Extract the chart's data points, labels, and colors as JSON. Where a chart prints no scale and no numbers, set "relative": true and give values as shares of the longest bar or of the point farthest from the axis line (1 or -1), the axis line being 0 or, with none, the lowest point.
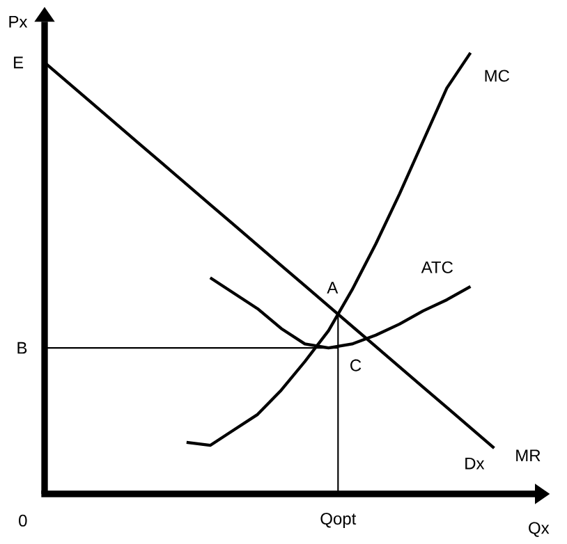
{
  "chart_data": {
    "type": "line",
    "relative": true,
    "xlabel": "Qx",
    "ylabel": "Px",
    "legend": false,
    "marker": "none",
    "line_style": "solid",
    "categories": [
      null,
      null,
      null,
      null,
      null,
      null,
      null,
      null,
      null,
      null,
      null,
      null,
      null,
      null,
      null,
      null,
      null,
      null,
      null,
      null
    ],
    "series": [
      {
        "name": "Dx",
        "color": "#000000",
        "values": [
          0.978,
          0.932,
          0.886,
          0.84,
          0.794,
          0.748,
          0.702,
          0.656,
          0.61,
          0.564,
          0.518,
          0.472,
          0.426,
          0.38,
          0.334,
          0.288,
          0.242,
          0.196,
          0.15,
          0.104
        ]
      },
      {
        "name": "MC",
        "color": "#000000",
        "values": [
          null,
          null,
          null,
          null,
          null,
          null,
          0.117,
          0.11,
          0.145,
          0.18,
          0.235,
          0.3,
          0.37,
          0.463,
          0.567,
          0.68,
          0.8,
          0.92,
          1.0,
          null
        ]
      },
      {
        "name": "ATC",
        "color": "#000000",
        "values": [
          null,
          null,
          null,
          null,
          null,
          null,
          null,
          0.49,
          0.455,
          0.42,
          0.375,
          0.34,
          0.331,
          0.34,
          0.36,
          0.385,
          0.415,
          0.44,
          0.47,
          null
        ]
      }
    ],
    "ref_lines": [
      {
        "axis": "y",
        "value": 0.331,
        "label": "B",
        "color": "#000000"
      }
    ],
    "annotations": [
      "E",
      "0",
      "A",
      "C",
      "MR",
      "Qopt"
    ]
  }
}
